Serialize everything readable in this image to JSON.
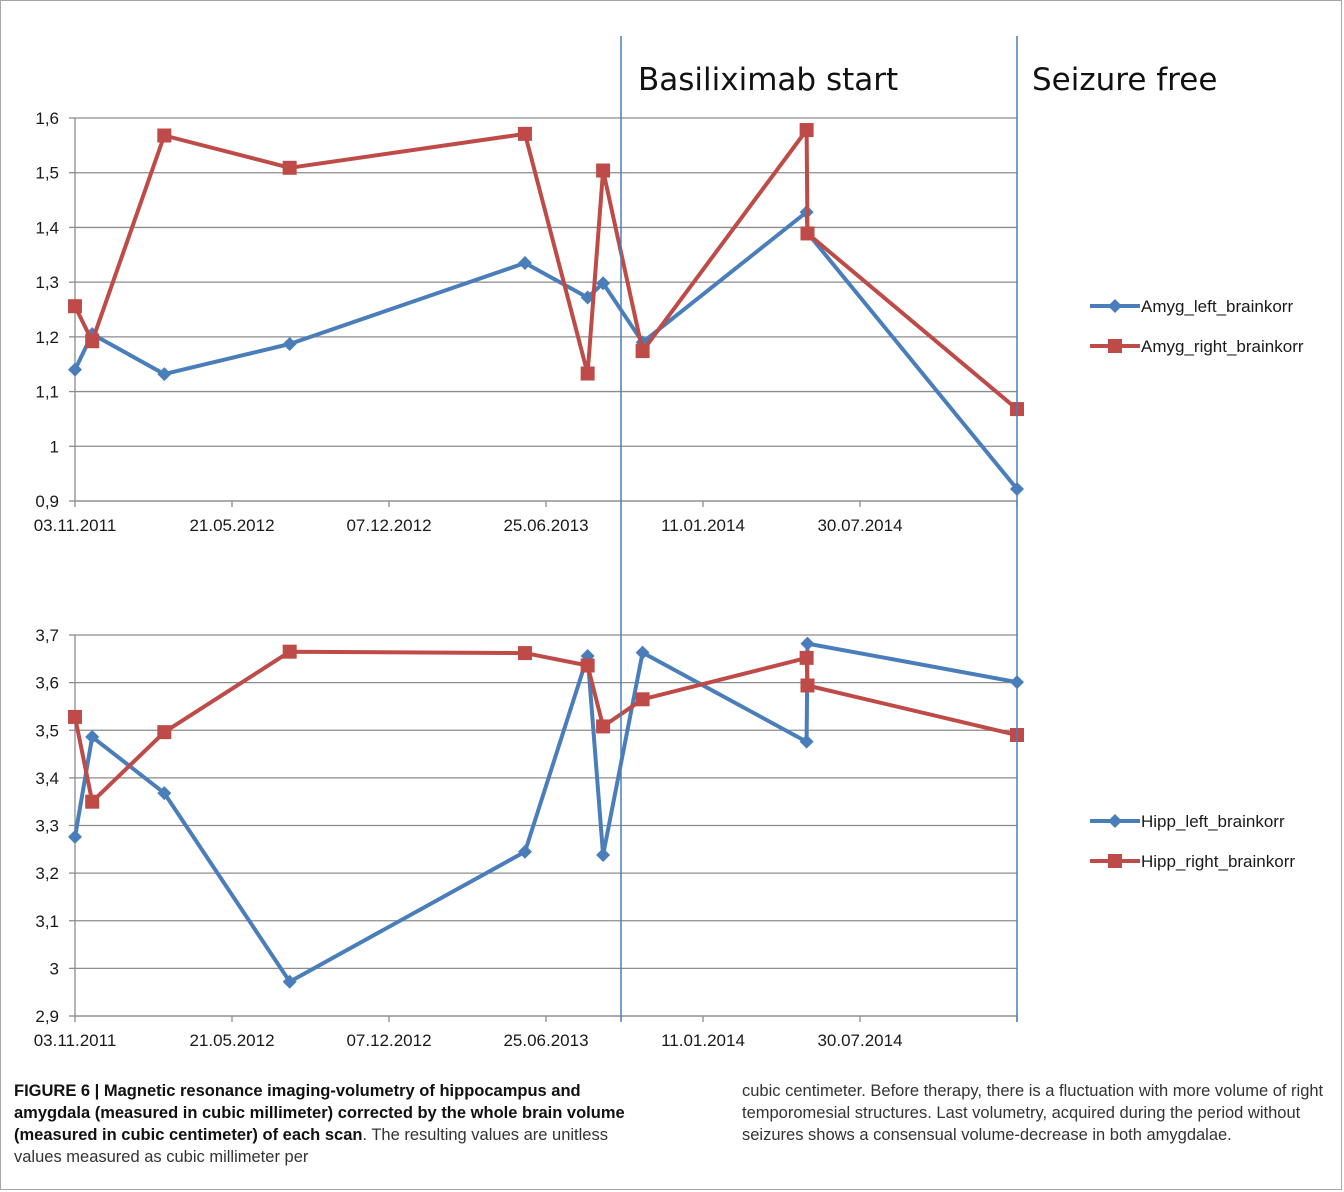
{
  "annotations": {
    "basiliximab": "Basiliximab start",
    "seizure_free": "Seizure free"
  },
  "caption": {
    "bold": "FIGURE 6 | Magnetic resonance imaging-volumetry of hippocampus and amygdala (measured in cubic millimeter) corrected by the whole brain volume (measured in cubic centimeter) of each scan",
    "bold_end": ".",
    "text_left": "The resulting values are unitless values measured as cubic millimeter per",
    "text_right": "cubic centimeter. Before therapy, there is a fluctuation with more volume of right temporomesial structures. Last volumetry, acquired during the period without seizures shows a consensual volume-decrease in both amygdalae."
  },
  "chart_data": [
    {
      "type": "line",
      "title": "",
      "xlabel": "",
      "ylabel": "",
      "x_axis": "date",
      "xlim": [
        "2011-11-03",
        "2014-11-04"
      ],
      "ylim": [
        0.9,
        1.6
      ],
      "xtick_labels": [
        "03.11.2011",
        "21.05.2012",
        "07.12.2012",
        "25.06.2013",
        "11.01.2014",
        "30.07.2014"
      ],
      "ytick_labels": [
        "0,9",
        "1",
        "1,1",
        "1,2",
        "1,3",
        "1,4",
        "1,5",
        "1,6"
      ],
      "ytick_values": [
        0.9,
        1.0,
        1.1,
        1.2,
        1.3,
        1.4,
        1.5,
        1.6
      ],
      "grid": true,
      "legend_position": "right",
      "series": [
        {
          "name": "Amyg_left_brainkorr",
          "color": "#4a7ebb",
          "marker": "diamond",
          "x": [
            "2011-11-03",
            "2011-11-23",
            "2012-02-15",
            "2012-07-10",
            "2013-04-10",
            "2013-06-22",
            "2013-07-10",
            "2013-08-25",
            "2014-03-04",
            "2014-03-05",
            "2014-11-04"
          ],
          "y": [
            1.14,
            1.205,
            1.132,
            1.187,
            1.335,
            1.272,
            1.298,
            1.19,
            1.428,
            1.39,
            0.922
          ]
        },
        {
          "name": "Amyg_right_brainkorr",
          "color": "#be4b48",
          "marker": "square",
          "x": [
            "2011-11-03",
            "2011-11-23",
            "2012-02-15",
            "2012-07-10",
            "2013-04-10",
            "2013-06-22",
            "2013-07-10",
            "2013-08-25",
            "2014-03-04",
            "2014-03-05",
            "2014-11-04"
          ],
          "y": [
            1.256,
            1.192,
            1.568,
            1.509,
            1.571,
            1.133,
            1.504,
            1.174,
            1.578,
            1.389,
            1.068
          ]
        }
      ]
    },
    {
      "type": "line",
      "title": "",
      "xlabel": "",
      "ylabel": "",
      "x_axis": "date",
      "xlim": [
        "2011-11-03",
        "2014-11-04"
      ],
      "ylim": [
        2.9,
        3.7
      ],
      "xtick_labels": [
        "03.11.2011",
        "21.05.2012",
        "07.12.2012",
        "25.06.2013",
        "11.01.2014",
        "30.07.2014"
      ],
      "ytick_labels": [
        "2,9",
        "3",
        "3,1",
        "3,2",
        "3,3",
        "3,4",
        "3,5",
        "3,6",
        "3,7"
      ],
      "ytick_values": [
        2.9,
        3.0,
        3.1,
        3.2,
        3.3,
        3.4,
        3.5,
        3.6,
        3.7
      ],
      "grid": true,
      "legend_position": "right",
      "series": [
        {
          "name": "Hipp_left_brainkorr",
          "color": "#4a7ebb",
          "marker": "diamond",
          "x": [
            "2011-11-03",
            "2011-11-23",
            "2012-02-15",
            "2012-07-10",
            "2013-04-10",
            "2013-06-22",
            "2013-07-10",
            "2013-08-25",
            "2014-03-04",
            "2014-03-05",
            "2014-11-04"
          ],
          "y": [
            3.276,
            3.486,
            3.368,
            2.972,
            3.245,
            3.656,
            3.238,
            3.663,
            3.476,
            3.682,
            3.601
          ]
        },
        {
          "name": "Hipp_right_brainkorr",
          "color": "#be4b48",
          "marker": "square",
          "x": [
            "2011-11-03",
            "2011-11-23",
            "2012-02-15",
            "2012-07-10",
            "2013-04-10",
            "2013-06-22",
            "2013-07-10",
            "2013-08-25",
            "2014-03-04",
            "2014-03-05",
            "2014-11-04"
          ],
          "y": [
            3.528,
            3.35,
            3.496,
            3.665,
            3.662,
            3.636,
            3.508,
            3.565,
            3.652,
            3.594,
            3.49
          ]
        }
      ]
    }
  ]
}
